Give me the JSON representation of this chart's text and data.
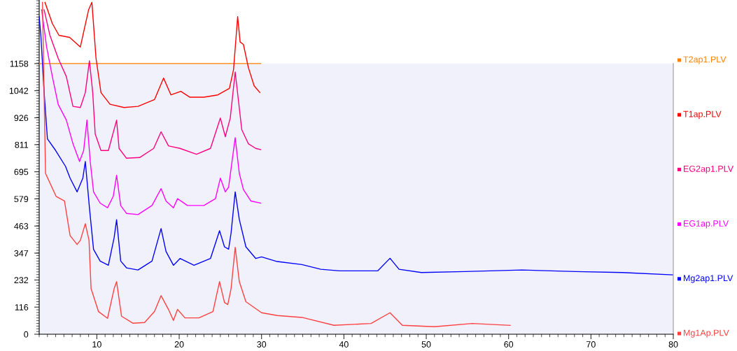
{
  "chart_data": {
    "type": "line",
    "xlim": [
      3,
      80
    ],
    "xticks": [
      10,
      20,
      30,
      40,
      50,
      60,
      70,
      80
    ],
    "ylim": [
      0,
      1430
    ],
    "yticks": [
      0,
      116,
      232,
      347,
      463,
      579,
      695,
      811,
      926,
      1042,
      1158
    ],
    "grid": false,
    "legend": "right",
    "marker": "none",
    "line_style": "solid",
    "bands": [
      {
        "axis": "y",
        "from": 0,
        "to": 1158,
        "color": "#f1f1fb"
      }
    ],
    "series": [
      {
        "name": "T2ap1.PLV",
        "color": "#ff8000",
        "x": [
          3,
          29.9
        ],
        "values": [
          1158,
          1158
        ]
      },
      {
        "name": "T1ap.PLV",
        "color": "#ff0000",
        "x": [
          3.7,
          4.6,
          5.4,
          6.7,
          8.0,
          8.5,
          9.0,
          9.4,
          9.9,
          10.5,
          11.6,
          13.3,
          15.0,
          17.0,
          18.1,
          19.0,
          20.2,
          21.3,
          23.0,
          24.7,
          26.1,
          26.6,
          27.1,
          27.4,
          27.8,
          28.4,
          29.1,
          29.8
        ],
        "values": [
          1420,
          1329,
          1279,
          1270,
          1229,
          1309,
          1388,
          1420,
          1181,
          1034,
          984,
          970,
          975,
          1004,
          1096,
          1024,
          1039,
          1014,
          1014,
          1024,
          1052,
          1132,
          1359,
          1250,
          1240,
          1141,
          1063,
          1034
        ]
      },
      {
        "name": "EG2ap1.PLV",
        "color": "#ff0080",
        "x": [
          3.6,
          4.3,
          5.3,
          6.3,
          7.1,
          8.0,
          8.6,
          9.1,
          9.5,
          9.8,
          10.5,
          11.4,
          12.4,
          12.7,
          13.6,
          15.2,
          16.9,
          17.8,
          18.7,
          20.1,
          22.1,
          23.8,
          25.0,
          25.6,
          26.2,
          26.8,
          27.6,
          28.4,
          29.3,
          29.9
        ],
        "values": [
          1388,
          1279,
          1181,
          1102,
          975,
          970,
          1034,
          1170,
          1034,
          857,
          786,
          786,
          916,
          795,
          753,
          756,
          795,
          866,
          806,
          795,
          770,
          795,
          925,
          845,
          925,
          1122,
          875,
          815,
          795,
          790
        ]
      },
      {
        "name": "EG1ap.PLV",
        "color": "#ff00ff",
        "x": [
          3.3,
          3.9,
          4.6,
          5.3,
          6.3,
          7.1,
          7.9,
          8.4,
          8.8,
          9.2,
          9.6,
          10.4,
          11.3,
          12.0,
          12.4,
          12.9,
          13.6,
          15.0,
          16.7,
          17.8,
          18.4,
          19.3,
          19.8,
          21.0,
          23.0,
          24.4,
          25.0,
          25.6,
          26.0,
          26.8,
          27.3,
          27.8,
          28.7,
          29.9
        ],
        "values": [
          1388,
          1229,
          1102,
          984,
          916,
          815,
          739,
          786,
          916,
          739,
          609,
          561,
          541,
          591,
          680,
          550,
          517,
          512,
          551,
          623,
          570,
          541,
          580,
          551,
          551,
          580,
          668,
          609,
          629,
          841,
          688,
          619,
          570,
          561
        ]
      },
      {
        "name": "Mg2ap1.PLV",
        "color": "#0000ff",
        "x": [
          3.0,
          3.2,
          3.6,
          4.0,
          5.0,
          6.2,
          6.75,
          7.6,
          8.3,
          8.6,
          9.1,
          9.6,
          10.4,
          11.4,
          12.1,
          12.4,
          12.9,
          13.6,
          15.0,
          16.7,
          17.8,
          18.4,
          19.3,
          20.1,
          21.8,
          23.8,
          24.9,
          25.5,
          26.0,
          26.3,
          26.8,
          27.3,
          28.1,
          29.3,
          30.0,
          31.9,
          34.9,
          37.2,
          39.5,
          44.1,
          45.6,
          46.7,
          49.4,
          54.7,
          61.6,
          68.1,
          73.8,
          79.9
        ],
        "values": [
          1359,
          1279,
          1034,
          836,
          786,
          718,
          668,
          609,
          668,
          739,
          541,
          363,
          313,
          295,
          413,
          490,
          313,
          284,
          275,
          313,
          452,
          354,
          295,
          324,
          295,
          324,
          443,
          374,
          364,
          433,
          609,
          491,
          374,
          324,
          331,
          311,
          298,
          278,
          271,
          271,
          325,
          278,
          264,
          268,
          275,
          268,
          264,
          254
        ]
      },
      {
        "name": "Mg1Ap.PLV",
        "color": "#ff4040",
        "x": [
          3.4,
          3.77,
          5.05,
          6.07,
          6.75,
          7.6,
          8.0,
          8.6,
          9.05,
          9.3,
          10.2,
          11.3,
          12.1,
          12.4,
          13.0,
          14.4,
          15.8,
          17.0,
          17.8,
          18.7,
          19.3,
          19.8,
          20.7,
          22.4,
          24.1,
          24.9,
          25.5,
          25.9,
          26.3,
          26.8,
          27.3,
          28.1,
          30.0,
          31.9,
          34.9,
          38.8,
          43.3,
          45.6,
          47.1,
          51.0,
          55.6,
          60.2
        ],
        "values": [
          1420,
          688,
          590,
          570,
          422,
          384,
          402,
          473,
          402,
          195,
          97,
          68,
          195,
          225,
          77,
          47,
          50,
          97,
          165,
          106,
          59,
          106,
          70,
          70,
          97,
          225,
          136,
          127,
          195,
          372,
          225,
          139,
          92,
          80,
          72,
          38,
          46,
          92,
          38,
          32,
          46,
          38
        ]
      }
    ]
  }
}
